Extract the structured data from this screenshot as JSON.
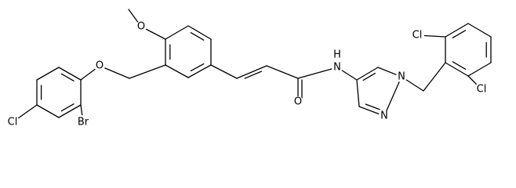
{
  "atoms": [
    "Cl",
    "Br",
    "O",
    "O",
    "O",
    "H",
    "N",
    "N",
    "N",
    "Cl",
    "Cl"
  ]
}
